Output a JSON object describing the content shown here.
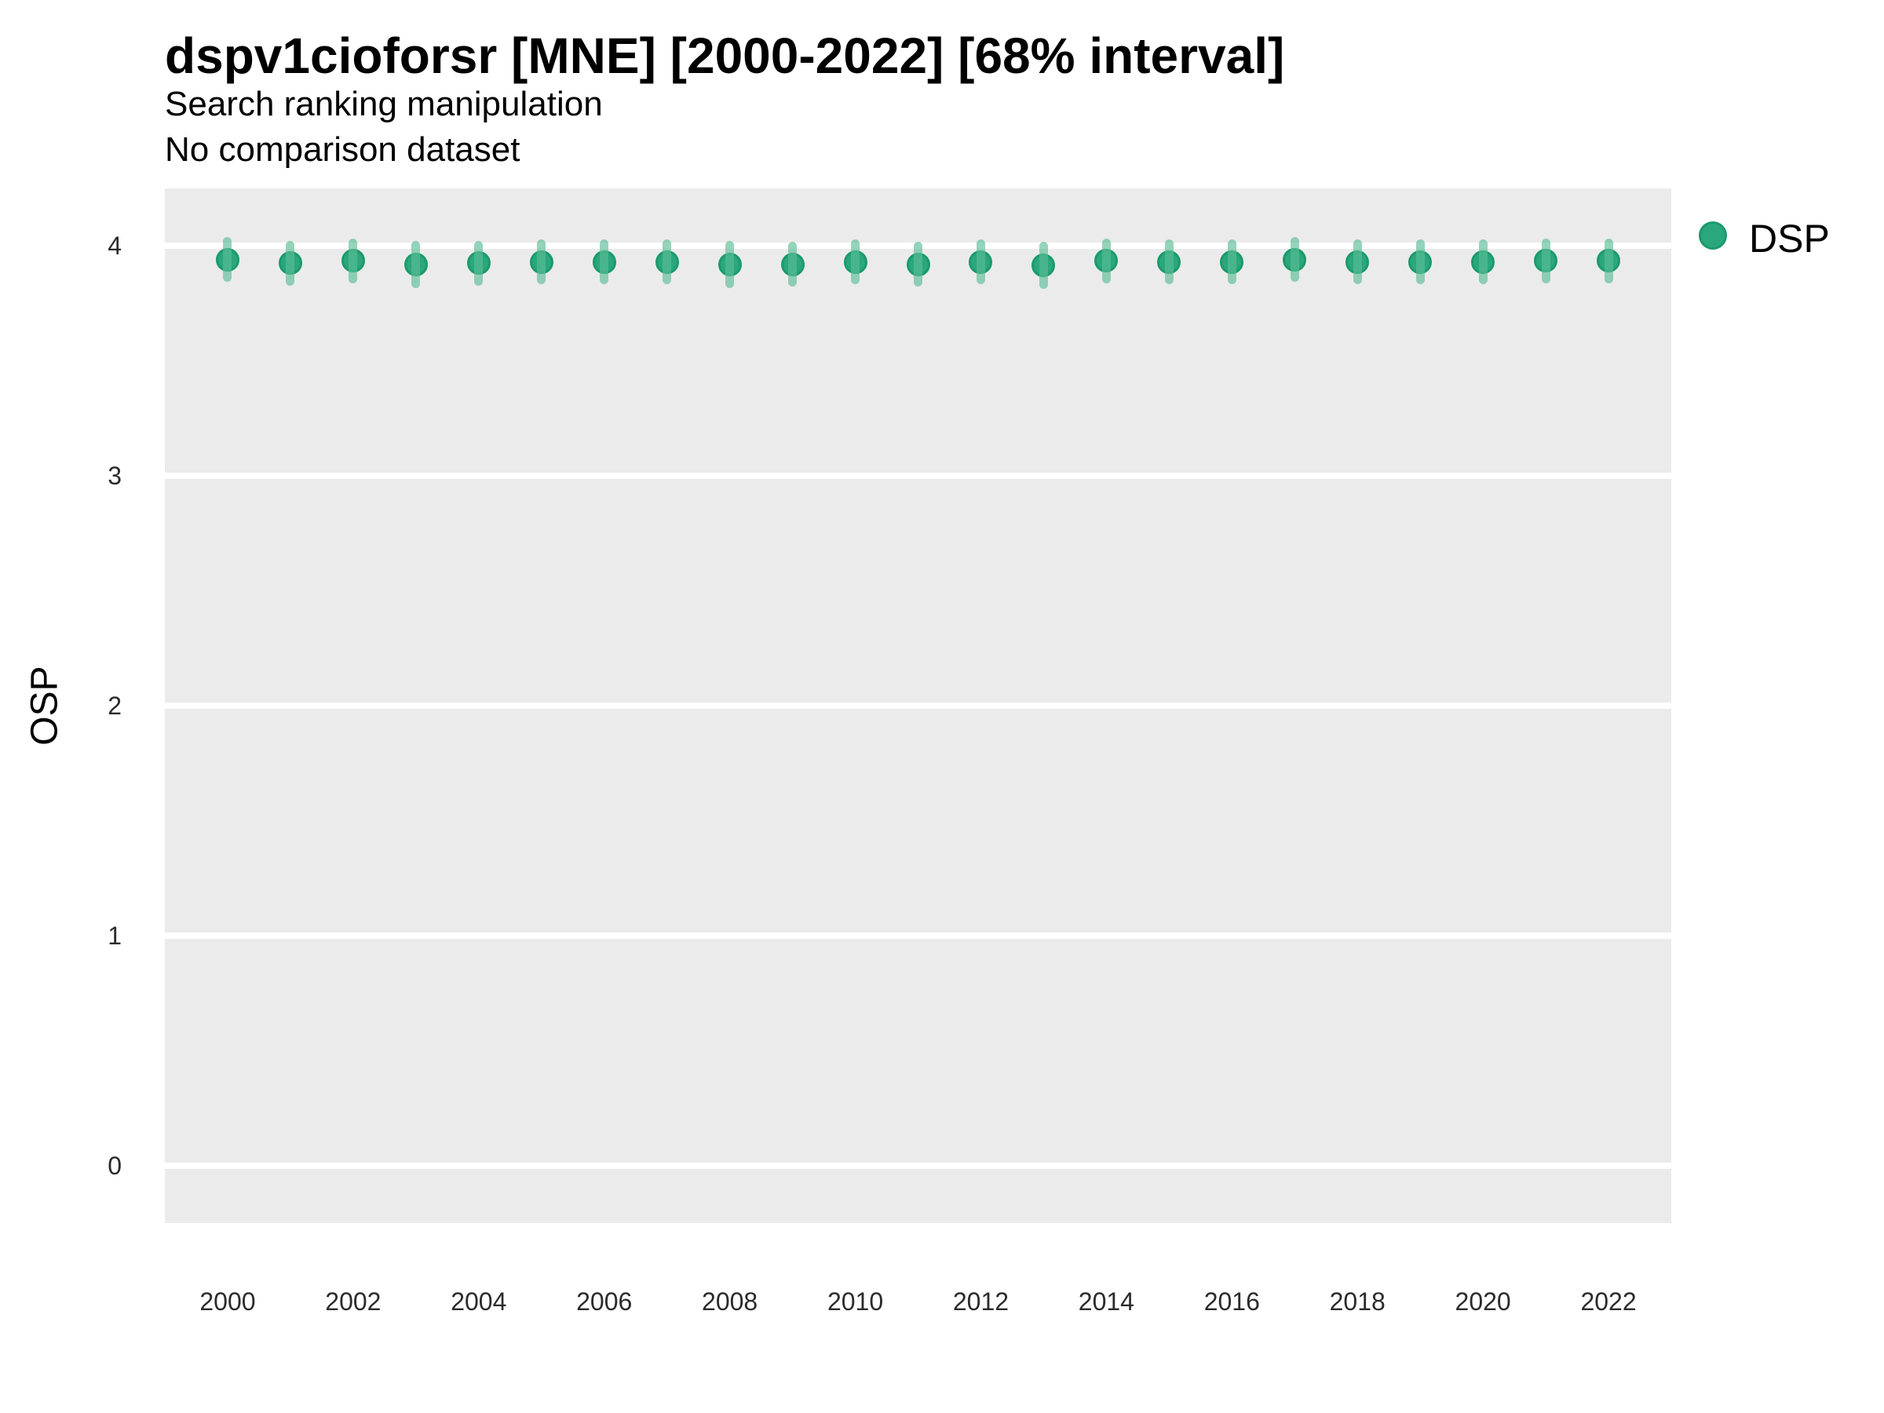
{
  "header": {
    "title": "dspv1cioforsr [MNE] [2000-2022] [68% interval]",
    "subtitle1": "Search ranking manipulation",
    "subtitle2": "No comparison dataset"
  },
  "colors": {
    "panel_background": "#EBEBEB",
    "gridline": "#FFFFFF",
    "point_fill": "#2aa77c",
    "point_border": "#1b9a6c",
    "interval_bar": "rgba(91,189,151,0.65)",
    "text": "#000000",
    "tick_text": "#2b2b2b"
  },
  "chart_data": {
    "type": "scatter",
    "title": "dspv1cioforsr [MNE] [2000-2022] [68% interval]",
    "subtitle1": "Search ranking manipulation",
    "subtitle2": "No comparison dataset",
    "xlabel": "",
    "ylabel": "OSP",
    "interval": "68%",
    "grid": "horizontal-major-only",
    "legend_position": "right-top",
    "xlim": [
      1999,
      2023
    ],
    "ylim": [
      -0.25,
      4.25
    ],
    "xticks": [
      2000,
      2002,
      2004,
      2006,
      2008,
      2010,
      2012,
      2014,
      2016,
      2018,
      2020,
      2022
    ],
    "yticks": [
      0,
      1,
      2,
      3,
      4
    ],
    "series": [
      {
        "name": "DSP",
        "color": "#2aa77c",
        "points": [
          {
            "x": 2000,
            "y": 3.94,
            "lo": 3.86,
            "hi": 4.02
          },
          {
            "x": 2001,
            "y": 3.925,
            "lo": 3.845,
            "hi": 4.005
          },
          {
            "x": 2002,
            "y": 3.935,
            "lo": 3.855,
            "hi": 4.015
          },
          {
            "x": 2003,
            "y": 3.92,
            "lo": 3.835,
            "hi": 4.005
          },
          {
            "x": 2004,
            "y": 3.925,
            "lo": 3.845,
            "hi": 4.005
          },
          {
            "x": 2005,
            "y": 3.93,
            "lo": 3.85,
            "hi": 4.01
          },
          {
            "x": 2006,
            "y": 3.93,
            "lo": 3.85,
            "hi": 4.01
          },
          {
            "x": 2007,
            "y": 3.93,
            "lo": 3.85,
            "hi": 4.01
          },
          {
            "x": 2008,
            "y": 3.92,
            "lo": 3.835,
            "hi": 4.005
          },
          {
            "x": 2009,
            "y": 3.92,
            "lo": 3.84,
            "hi": 4.0
          },
          {
            "x": 2010,
            "y": 3.93,
            "lo": 3.85,
            "hi": 4.01
          },
          {
            "x": 2011,
            "y": 3.92,
            "lo": 3.84,
            "hi": 4.0
          },
          {
            "x": 2012,
            "y": 3.93,
            "lo": 3.85,
            "hi": 4.01
          },
          {
            "x": 2013,
            "y": 3.915,
            "lo": 3.83,
            "hi": 4.0
          },
          {
            "x": 2014,
            "y": 3.935,
            "lo": 3.855,
            "hi": 4.015
          },
          {
            "x": 2015,
            "y": 3.93,
            "lo": 3.85,
            "hi": 4.01
          },
          {
            "x": 2016,
            "y": 3.93,
            "lo": 3.85,
            "hi": 4.01
          },
          {
            "x": 2017,
            "y": 3.94,
            "lo": 3.86,
            "hi": 4.02
          },
          {
            "x": 2018,
            "y": 3.93,
            "lo": 3.85,
            "hi": 4.01
          },
          {
            "x": 2019,
            "y": 3.93,
            "lo": 3.85,
            "hi": 4.01
          },
          {
            "x": 2020,
            "y": 3.93,
            "lo": 3.85,
            "hi": 4.01
          },
          {
            "x": 2021,
            "y": 3.935,
            "lo": 3.855,
            "hi": 4.015
          },
          {
            "x": 2022,
            "y": 3.935,
            "lo": 3.855,
            "hi": 4.015
          }
        ]
      }
    ]
  }
}
